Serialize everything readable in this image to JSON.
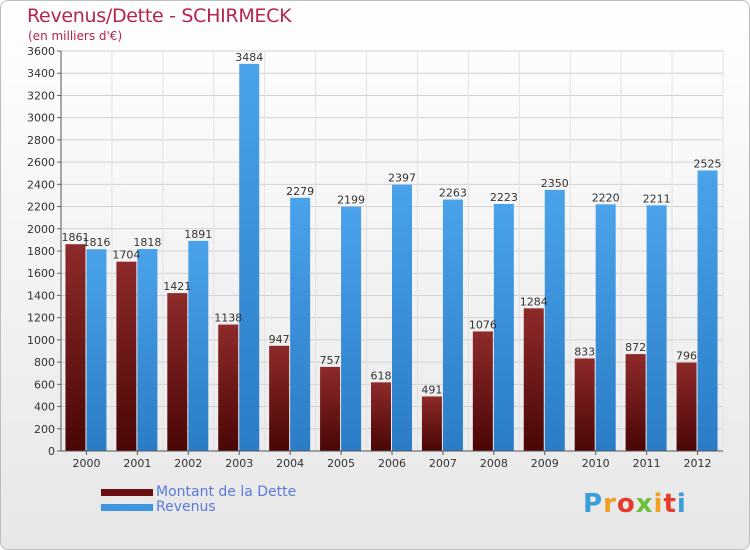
{
  "header": {
    "title": "Revenus/Dette - SCHIRMECK",
    "subtitle": "(en milliers d'€)"
  },
  "chart_data": {
    "type": "bar",
    "title": "Revenus/Dette - SCHIRMECK",
    "ylabel": "(en milliers d'€)",
    "xlabel": "",
    "ylim": [
      0,
      3600
    ],
    "ytick_step": 200,
    "grid": true,
    "categories": [
      "2000",
      "2001",
      "2002",
      "2003",
      "2004",
      "2005",
      "2006",
      "2007",
      "2008",
      "2009",
      "2010",
      "2011",
      "2012"
    ],
    "series": [
      {
        "name": "Montant de la Dette",
        "color": "#7a1a1a",
        "values": [
          1861,
          1704,
          1421,
          1138,
          947,
          757,
          618,
          491,
          1076,
          1284,
          833,
          872,
          796
        ]
      },
      {
        "name": "Revenus",
        "color": "#3e95df",
        "values": [
          1816,
          1818,
          1891,
          3484,
          2279,
          2199,
          2397,
          2263,
          2223,
          2350,
          2220,
          2211,
          2525
        ]
      }
    ]
  },
  "legend": {
    "items": [
      {
        "label": "Montant de la Dette",
        "color": "#6b0f12"
      },
      {
        "label": "Revenus",
        "color": "#3e95df"
      }
    ]
  },
  "logo": {
    "text": "Proxiti"
  }
}
